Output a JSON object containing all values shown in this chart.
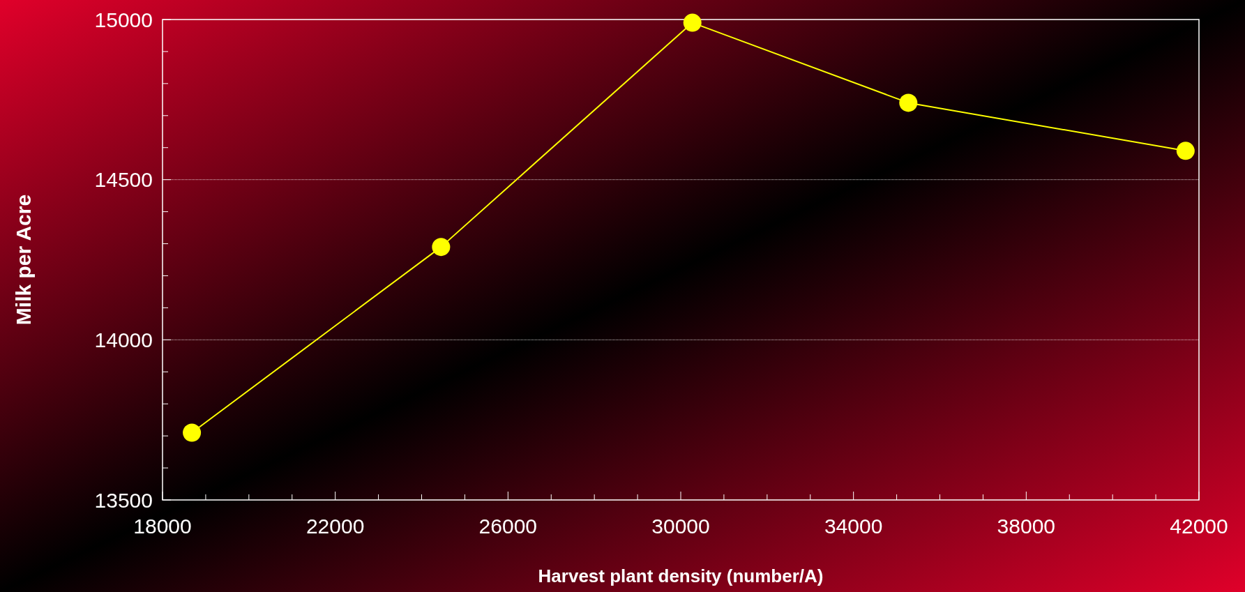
{
  "chart_data": {
    "type": "line",
    "xlabel": "Harvest plant density (number/A)",
    "ylabel": "Milk per Acre",
    "x": [
      18680,
      24450,
      30270,
      35270,
      41690
    ],
    "series": [
      {
        "color": "#ffff00",
        "values": [
          13710,
          14290,
          14990,
          14740,
          14590
        ]
      }
    ],
    "xlim": [
      18000,
      42000
    ],
    "xticks": [
      18000,
      {
        "value": 19000,
        "label": null
      },
      {
        "value": 20000,
        "label": null
      },
      {
        "value": 21000,
        "label": null
      },
      22000,
      {
        "value": 23000,
        "label": null
      },
      {
        "value": 24000,
        "label": null
      },
      {
        "value": 25000,
        "label": null
      },
      26000,
      {
        "value": 27000,
        "label": null
      },
      {
        "value": 28000,
        "label": null
      },
      {
        "value": 29000,
        "label": null
      },
      30000,
      {
        "value": 31000,
        "label": null
      },
      {
        "value": 32000,
        "label": null
      },
      {
        "value": 33000,
        "label": null
      },
      34000,
      {
        "value": 35000,
        "label": null
      },
      {
        "value": 36000,
        "label": null
      },
      {
        "value": 37000,
        "label": null
      },
      38000,
      {
        "value": 39000,
        "label": null
      },
      {
        "value": 40000,
        "label": null
      },
      {
        "value": 41000,
        "label": null
      },
      42000
    ],
    "ylim": [
      13500,
      15000
    ],
    "yticks": [
      13500,
      {
        "value": 13600,
        "label": null
      },
      {
        "value": 13700,
        "label": null
      },
      {
        "value": 13800,
        "label": null
      },
      {
        "value": 13900,
        "label": null
      },
      14000,
      {
        "value": 14100,
        "label": null
      },
      {
        "value": 14200,
        "label": null
      },
      {
        "value": 14300,
        "label": null
      },
      {
        "value": 14400,
        "label": null
      },
      14500,
      {
        "value": 14600,
        "label": null
      },
      {
        "value": 14700,
        "label": null
      },
      {
        "value": 14800,
        "label": null
      },
      {
        "value": 14900,
        "label": null
      },
      15000
    ],
    "grid": "y",
    "marker": "circle",
    "line_style": "solid"
  }
}
